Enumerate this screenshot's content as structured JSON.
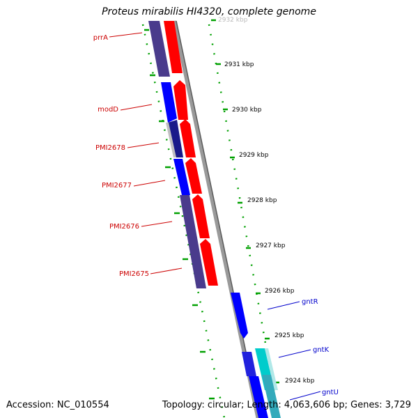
{
  "title": "Proteus mirabilis HI4320, complete genome",
  "footer": {
    "accession": "Accession: NC_010554",
    "summary": "Topology: circular; Length: 4,063,606 bp; Genes: 3,729"
  },
  "colors": {
    "forward_gene": "#ff0000",
    "reverse_gene": "#0000ff",
    "reverse_gene_dark": "#4a3b8c",
    "gene_light": "#00cccc",
    "backbone": "#888888",
    "ticks": "#00a000",
    "label_forward": "#cc0000",
    "label_reverse": "#0000cc"
  },
  "scale_labels": [
    "2932 kbp",
    "2931 kbp",
    "2930 kbp",
    "2929 kbp",
    "2928 kbp",
    "2927 kbp",
    "2926 kbp",
    "2925 kbp",
    "2924 kbp"
  ],
  "gene_labels": {
    "left": [
      "prrA",
      "modD",
      "PMI2678",
      "PMI2677",
      "PMI2676",
      "PMI2675"
    ],
    "right": [
      "gntR",
      "gntK",
      "gntU"
    ]
  }
}
